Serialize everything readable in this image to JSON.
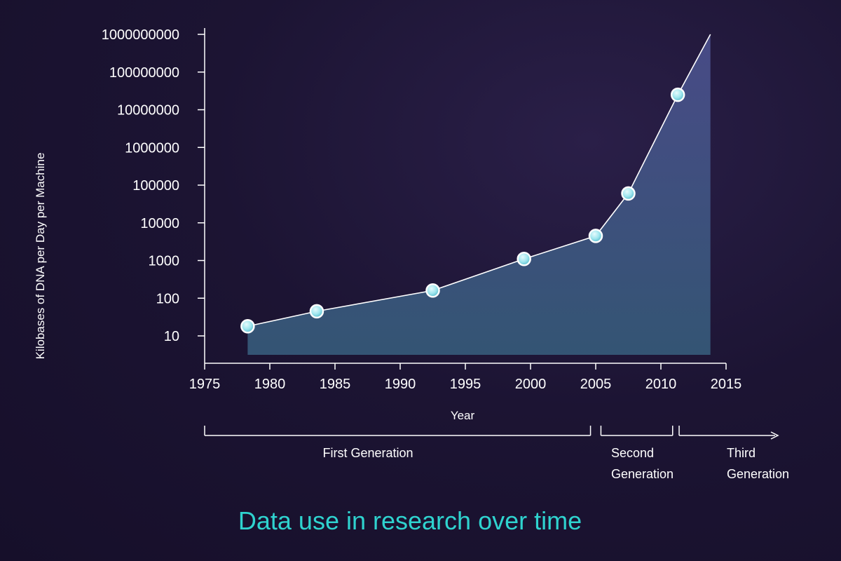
{
  "chart_data": {
    "type": "area",
    "title": "Data use in research over time",
    "xlabel": "Year",
    "ylabel": "Kilobases of DNA per Day per Machine",
    "y_scale": "log",
    "xlim": [
      1975,
      2015
    ],
    "ylim": [
      10,
      1000000000
    ],
    "x_ticks": [
      1975,
      1980,
      1985,
      1990,
      1995,
      2000,
      2005,
      2010,
      2015
    ],
    "y_ticks": [
      "10",
      "100",
      "1000",
      "10000",
      "100000",
      "1000000",
      "10000000",
      "100000000",
      "1000000000"
    ],
    "series": [
      {
        "points": [
          {
            "x": 1978.3,
            "y": 18
          },
          {
            "x": 1983.6,
            "y": 45
          },
          {
            "x": 1992.5,
            "y": 160
          },
          {
            "x": 1999.5,
            "y": 1100
          },
          {
            "x": 2005.0,
            "y": 4500
          },
          {
            "x": 2007.5,
            "y": 60000
          },
          {
            "x": 2011.3,
            "y": 25000000
          },
          {
            "x": 2013.8,
            "y": 1000000000
          }
        ],
        "markers_on": [
          0,
          1,
          2,
          3,
          4,
          5,
          6
        ],
        "line_color": "#ffffff",
        "fill_color": "#3d5277",
        "marker_color": "#8fe3ea"
      }
    ],
    "grid": false,
    "legend": "none",
    "generations": [
      {
        "label": "First Generation",
        "start": 1975,
        "end": 2005
      },
      {
        "label": "Second Generation",
        "start": 2005,
        "end": 2011
      },
      {
        "label": "Third Generation",
        "start": 2011,
        "end": 2015
      }
    ],
    "colors": {
      "background": "#1c1433",
      "title": "#2fd3cf",
      "text": "#ffffff"
    }
  }
}
